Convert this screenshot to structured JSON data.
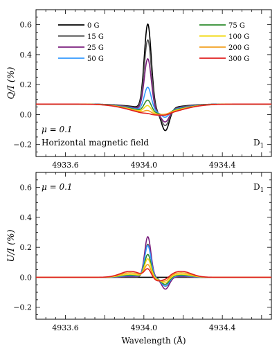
{
  "chart_data": [
    {
      "type": "line",
      "panel": "top",
      "ylabel": "Q/I (%)",
      "xlim": [
        4933.45,
        4934.65
      ],
      "ylim": [
        -0.28,
        0.7
      ],
      "xticks": [
        4933.6,
        4934.0,
        4934.4
      ],
      "xtick_labels": [
        "4933.6",
        "4934.0",
        "4934.4"
      ],
      "yticks": [
        -0.2,
        0.0,
        0.2,
        0.4,
        0.6
      ],
      "ytick_labels": [
        "−0.2",
        "0.0",
        "0.2",
        "0.4",
        "0.6"
      ],
      "annotation_mu": "μ = 0.1",
      "annotation_field": "Horizontal magnetic field",
      "corner_label": "D",
      "corner_label_sub": "1",
      "legend": {
        "placement": "top",
        "columns": 2
      },
      "baseline": 0.07,
      "series": [
        {
          "name": "0 G",
          "color": "#000000",
          "peak": 0.57,
          "trough": -0.16,
          "dip": -0.02
        },
        {
          "name": "15 G",
          "color": "#555555",
          "peak": 0.47,
          "trough": -0.12,
          "dip": -0.02
        },
        {
          "name": "25 G",
          "color": "#7b1f7e",
          "peak": 0.35,
          "trough": -0.09,
          "dip": -0.02
        },
        {
          "name": "50 G",
          "color": "#3399ff",
          "peak": 0.16,
          "trough": -0.05,
          "dip": -0.01
        },
        {
          "name": "75 G",
          "color": "#2e8b2e",
          "peak": 0.08,
          "trough": -0.03,
          "dip": -0.01
        },
        {
          "name": "100 G",
          "color": "#f2dc20",
          "peak": 0.05,
          "trough": -0.02,
          "dip": -0.01
        },
        {
          "name": "200 G",
          "color": "#f2a020",
          "peak": 0.02,
          "trough": -0.01,
          "dip": -0.005
        },
        {
          "name": "300 G",
          "color": "#e01e1e",
          "peak": 0.005,
          "trough": -0.01,
          "dip": -0.003
        }
      ]
    },
    {
      "type": "line",
      "panel": "bottom",
      "xlabel": "Wavelength (Å)",
      "ylabel": "U/I (%)",
      "xlim": [
        4933.45,
        4934.65
      ],
      "ylim": [
        -0.28,
        0.7
      ],
      "xticks": [
        4933.6,
        4934.0,
        4934.4
      ],
      "xtick_labels": [
        "4933.6",
        "4934.0",
        "4934.4"
      ],
      "yticks": [
        -0.2,
        0.0,
        0.2,
        0.4,
        0.6
      ],
      "ytick_labels": [
        "−0.2",
        "0.0",
        "0.2",
        "0.4",
        "0.6"
      ],
      "annotation_mu": "μ = 0.1",
      "corner_label": "D",
      "corner_label_sub": "1",
      "baseline": 0.0,
      "series": [
        {
          "name": "0 G",
          "color": "#000000",
          "peak": 0.0,
          "trough": 0.0,
          "wing": 0.0
        },
        {
          "name": "15 G",
          "color": "#555555",
          "peak": 0.22,
          "trough": -0.06,
          "wing": 0.003
        },
        {
          "name": "25 G",
          "color": "#7b1f7e",
          "peak": 0.27,
          "trough": -0.08,
          "wing": 0.005
        },
        {
          "name": "50 G",
          "color": "#3399ff",
          "peak": 0.21,
          "trough": -0.06,
          "wing": 0.01
        },
        {
          "name": "75 G",
          "color": "#2e8b2e",
          "peak": 0.15,
          "trough": -0.05,
          "wing": 0.015
        },
        {
          "name": "100 G",
          "color": "#f2dc20",
          "peak": 0.12,
          "trough": -0.04,
          "wing": 0.02
        },
        {
          "name": "200 G",
          "color": "#f2a020",
          "peak": 0.08,
          "trough": -0.03,
          "wing": 0.03
        },
        {
          "name": "300 G",
          "color": "#e01e1e",
          "peak": 0.05,
          "trough": -0.02,
          "wing": 0.04
        }
      ]
    }
  ]
}
